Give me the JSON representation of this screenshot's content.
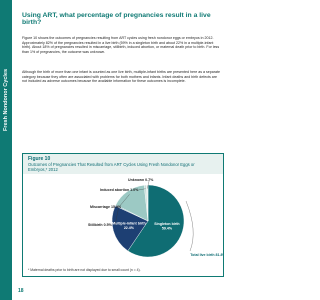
{
  "sidebar": "Fresh Nondonor Cycles",
  "title": "Using ART, what percentage of pregnancies result in a live birth?",
  "paragraphs": [
    "Figure 10 shows the outcomes of pregnancies resulting from ART cycles using fresh nondonor eggs or embryos in 2012. Approximately 82% of the pregnancies resulted in a live birth (59% in a singleton birth and about 22% in a multiple-infant birth). About 18% of pregnancies resulted in miscarriage, stillbirth, induced abortion, or maternal death prior to birth. For less than 1% of pregnancies, the outcome was unknown.",
    "Although the birth of more than one infant is counted as one live birth, multiple-infant births are presented here as a separate category because they often are associated with problems for both mothers and infants. Infant deaths and birth defects are not included as adverse outcomes because the available information for these outcomes is incomplete."
  ],
  "figure": {
    "label": "Figure 10",
    "caption": "Outcomes of Pregnancies That Resulted from ART Cycles Using Fresh Nondonor Eggs or Embryos,* 2012",
    "chart_data": {
      "type": "pie",
      "categories": [
        "Singleton birth",
        "Multiple-infant birth",
        "Stillbirth",
        "Miscarriage",
        "Induced abortion",
        "Unknown"
      ],
      "values": [
        59.4,
        22.4,
        0.5,
        15.9,
        1.0,
        0.7
      ],
      "value_labels": [
        "59.4%",
        "22.4%",
        "0.5%",
        "15.9%",
        "1.0%",
        "0.7%"
      ],
      "colors": [
        "#0f6d73",
        "#1d3f73",
        "#7fa7b5",
        "#9cc9c4",
        "#c7ddd9",
        "#e3eeec"
      ],
      "annotations": [
        "Total live birth 81.8%"
      ]
    },
    "footnote": "* Maternal deaths prior to birth are not displayed due to small count (n = 4)."
  },
  "page_number": "18"
}
